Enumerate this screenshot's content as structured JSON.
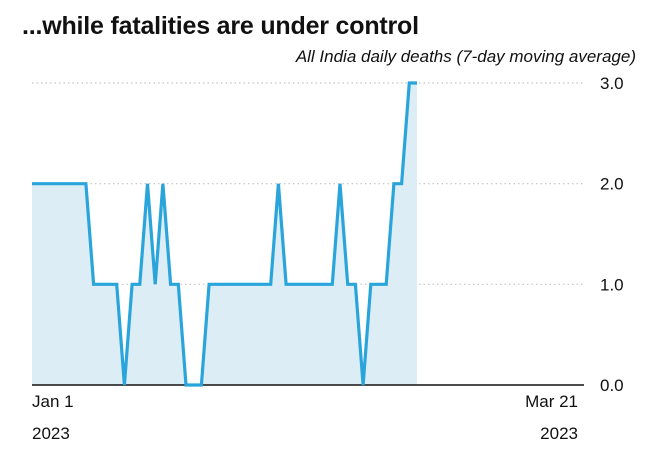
{
  "title": "...while fatalities are under control",
  "chart_data": {
    "type": "area",
    "subtitle": "All India daily deaths (7-day moving average)",
    "start_date": "2023-01-01",
    "x_tick_labels": [
      {
        "day": "Jan 1",
        "year": "2023",
        "date": "2023-01-01"
      },
      {
        "day": "Mar 21",
        "year": "2023",
        "date": "2023-03-21"
      }
    ],
    "y_tick_labels": [
      "0.0",
      "1.0",
      "2.0",
      "3.0"
    ],
    "ylim": [
      0,
      3
    ],
    "grid": "horizontal dotted",
    "colors": {
      "line": "#2aa5dc",
      "fill": "#ddedf6",
      "grid": "#c4c4c4"
    },
    "series": [
      {
        "points": [
          [
            "2023-01-01",
            2
          ],
          [
            "2023-01-08",
            2
          ],
          [
            "2023-01-09",
            1
          ],
          [
            "2023-01-12",
            1
          ],
          [
            "2023-01-13",
            0
          ],
          [
            "2023-01-14",
            1
          ],
          [
            "2023-01-15",
            1
          ],
          [
            "2023-01-16",
            2
          ],
          [
            "2023-01-17",
            1
          ],
          [
            "2023-01-18",
            2
          ],
          [
            "2023-01-19",
            1
          ],
          [
            "2023-01-20",
            1
          ],
          [
            "2023-01-21",
            0
          ],
          [
            "2023-01-23",
            0
          ],
          [
            "2023-01-24",
            1
          ],
          [
            "2023-02-01",
            1
          ],
          [
            "2023-02-02",
            2
          ],
          [
            "2023-02-03",
            1
          ],
          [
            "2023-02-09",
            1
          ],
          [
            "2023-02-10",
            2
          ],
          [
            "2023-02-11",
            1
          ],
          [
            "2023-02-12",
            1
          ],
          [
            "2023-02-13",
            0
          ],
          [
            "2023-02-14",
            1
          ],
          [
            "2023-02-16",
            1
          ],
          [
            "2023-02-17",
            2
          ],
          [
            "2023-02-18",
            2
          ],
          [
            "2023-02-19",
            3
          ],
          [
            "2023-02-20",
            3
          ]
        ]
      }
    ]
  }
}
